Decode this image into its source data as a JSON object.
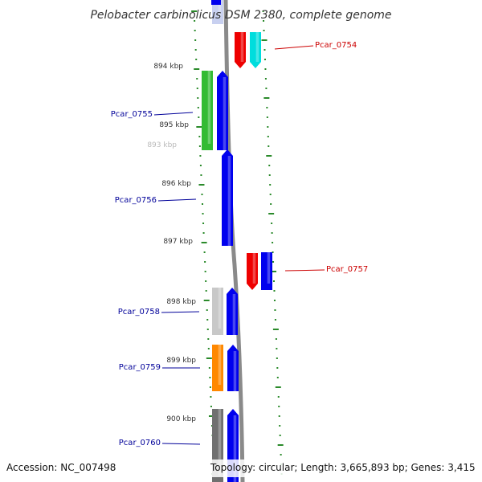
{
  "title": "Pelobacter carbinolicus DSM 2380, complete genome",
  "footer": {
    "accession": "Accession: NC_007498",
    "topology": "Topology: circular; Length: 3,665,893 bp; Genes: 3,415"
  },
  "colors": {
    "backbone": "#8a8a8a",
    "tick": "#2a8a2a",
    "label_forward": "#cc0000",
    "label_reverse": "#000099",
    "blue": "#0000ee",
    "red": "#ee0000",
    "cyan": "#00dddd",
    "green": "#33bb33",
    "gray": "#c8c8c8",
    "darkgray": "#707070",
    "orange": "#ff8800",
    "lightblue": "#c8d0f0"
  },
  "tick_labels": [
    "893 kbp",
    "894 kbp",
    "895 kbp",
    "896 kbp",
    "897 kbp",
    "898 kbp",
    "899 kbp",
    "900 kbp"
  ],
  "gene_labels": [
    {
      "name": "Pcar_0754",
      "strand": "forward"
    },
    {
      "name": "Pcar_0755",
      "strand": "reverse"
    },
    {
      "name": "Pcar_0756",
      "strand": "reverse"
    },
    {
      "name": "Pcar_0757",
      "strand": "forward"
    },
    {
      "name": "Pcar_0758",
      "strand": "reverse"
    },
    {
      "name": "Pcar_0759",
      "strand": "reverse"
    },
    {
      "name": "Pcar_0760",
      "strand": "reverse"
    }
  ]
}
